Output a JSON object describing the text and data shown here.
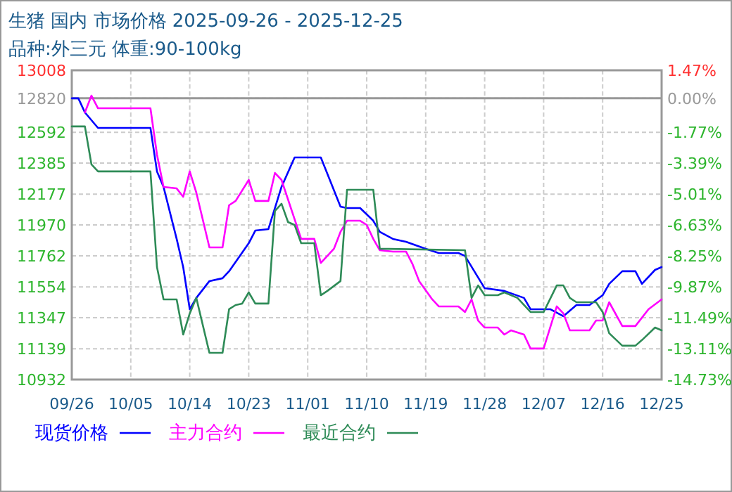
{
  "chart_data": {
    "type": "line",
    "title": "生猪 国内 市场价格 2025-09-26 - 2025-12-25",
    "subtitle": "品种:外三元 体重:90-100kg",
    "xlim": [
      "--09-26",
      "--12-25"
    ],
    "xticks": [
      {
        "value": "--09-26",
        "label": "09/26"
      },
      {
        "value": "--10-05",
        "label": "10/05"
      },
      {
        "value": "--10-14",
        "label": "10/14"
      },
      {
        "value": "--10-23",
        "label": "10/23"
      },
      {
        "value": "--11-01",
        "label": "11/01"
      },
      {
        "value": "--11-10",
        "label": "11/10"
      },
      {
        "value": "--11-19",
        "label": "11/19"
      },
      {
        "value": "--11-28",
        "label": "11/28"
      },
      {
        "value": "--12-07",
        "label": "12/07"
      },
      {
        "value": "--12-16",
        "label": "12/16"
      },
      {
        "value": "--12-25",
        "label": "12/25"
      }
    ],
    "ylim": [
      10932,
      13008
    ],
    "yticks": [
      13008,
      12820,
      12592,
      12385,
      12177,
      11970,
      11762,
      11554,
      11347,
      11139,
      10932
    ],
    "y2lim": [
      -14.73,
      1.47
    ],
    "y2ticks": [
      {
        "value": 1.47,
        "label": "1.47%"
      },
      {
        "value": 0,
        "label": "0.00%"
      },
      {
        "value": -1.77,
        "label": "-1.77%"
      },
      {
        "value": -3.39,
        "label": "-3.39%"
      },
      {
        "value": -5.01,
        "label": "-5.01%"
      },
      {
        "value": -6.63,
        "label": "-6.63%"
      },
      {
        "value": -8.25,
        "label": "-8.25%"
      },
      {
        "value": -9.87,
        "label": "-9.87%"
      },
      {
        "value": -11.49,
        "label": "-11.49%"
      },
      {
        "value": -13.11,
        "label": "-13.11%"
      },
      {
        "value": -14.73,
        "label": "-14.73%"
      }
    ],
    "ref_lines": [
      {
        "axis": "y",
        "value": 12820,
        "color": "#999999"
      }
    ],
    "grid": true,
    "legend": "bottom",
    "line_style": "solid",
    "series": [
      {
        "name": "现货价格",
        "color": "#0000ff",
        "x": [
          "--09-26",
          "--09-27",
          "--09-28",
          "--09-30",
          "--10-08",
          "--10-09",
          "--10-10",
          "--10-12",
          "--10-13",
          "--10-14",
          "--10-15",
          "--10-17",
          "--10-19",
          "--10-20",
          "--10-23",
          "--10-24",
          "--10-26",
          "--10-28",
          "--10-30",
          "--11-03",
          "--11-06",
          "--11-07",
          "--11-09",
          "--11-11",
          "--11-12",
          "--11-14",
          "--11-16",
          "--11-19",
          "--11-21",
          "--11-24",
          "--11-25",
          "--11-28",
          "--12-01",
          "--12-04",
          "--12-05",
          "--12-08",
          "--12-10",
          "--12-12",
          "--12-14",
          "--12-16",
          "--12-17",
          "--12-19",
          "--12-21",
          "--12-22",
          "--12-24",
          "--12-25"
        ],
        "values": [
          12820,
          12820,
          12725,
          12621,
          12621,
          12329,
          12225,
          11876,
          11687,
          11404,
          11480,
          11593,
          11612,
          11659,
          11847,
          11932,
          11942,
          12225,
          12423,
          12423,
          12093,
          12083,
          12083,
          11998,
          11923,
          11876,
          11857,
          11810,
          11781,
          11781,
          11762,
          11545,
          11527,
          11480,
          11404,
          11404,
          11357,
          11432,
          11432,
          11498,
          11574,
          11659,
          11659,
          11574,
          11668,
          11687
        ]
      },
      {
        "name": "主力合约",
        "color": "#ff00ff",
        "x": [
          "--09-28",
          "--09-29",
          "--09-30",
          "--10-08",
          "--10-09",
          "--10-10",
          "--10-12",
          "--10-13",
          "--10-14",
          "--10-15",
          "--10-17",
          "--10-19",
          "--10-20",
          "--10-21",
          "--10-23",
          "--10-24",
          "--10-26",
          "--10-27",
          "--10-28",
          "--10-31",
          "--11-02",
          "--11-03",
          "--11-05",
          "--11-06",
          "--11-07",
          "--11-09",
          "--11-10",
          "--11-11",
          "--11-12",
          "--11-14",
          "--11-16",
          "--11-17",
          "--11-18",
          "--11-20",
          "--11-21",
          "--11-24",
          "--11-25",
          "--11-26",
          "--11-27",
          "--11-28",
          "--11-30",
          "--12-01",
          "--12-02",
          "--12-04",
          "--12-05",
          "--12-07",
          "--12-09",
          "--12-10",
          "--12-11",
          "--12-14",
          "--12-15",
          "--12-16",
          "--12-17",
          "--12-19",
          "--12-21",
          "--12-23",
          "--12-25"
        ],
        "values": [
          12725,
          12838,
          12753,
          12753,
          12442,
          12225,
          12215,
          12159,
          12329,
          12187,
          11819,
          11819,
          12102,
          12131,
          12272,
          12131,
          12131,
          12319,
          12272,
          11876,
          11876,
          11715,
          11810,
          11923,
          11998,
          11998,
          11970,
          11876,
          11800,
          11791,
          11791,
          11706,
          11593,
          11470,
          11423,
          11423,
          11385,
          11470,
          11328,
          11281,
          11281,
          11234,
          11262,
          11234,
          11140,
          11140,
          11423,
          11376,
          11262,
          11262,
          11328,
          11328,
          11451,
          11291,
          11291,
          11404,
          11470
        ]
      },
      {
        "name": "最近合约",
        "color": "#2e8b57",
        "x": [
          "--09-26",
          "--09-28",
          "--09-29",
          "--09-30",
          "--10-08",
          "--10-09",
          "--10-10",
          "--10-12",
          "--10-13",
          "--10-14",
          "--10-15",
          "--10-17",
          "--10-19",
          "--10-20",
          "--10-21",
          "--10-22",
          "--10-23",
          "--10-24",
          "--10-26",
          "--10-27",
          "--10-28",
          "--10-29",
          "--10-30",
          "--10-31",
          "--11-02",
          "--11-03",
          "--11-04",
          "--11-06",
          "--11-07",
          "--11-11",
          "--11-12",
          "--11-25",
          "--11-26",
          "--11-27",
          "--11-28",
          "--11-30",
          "--12-01",
          "--12-03",
          "--12-05",
          "--12-07",
          "--12-09",
          "--12-10",
          "--12-11",
          "--12-12",
          "--12-15",
          "--12-16",
          "--12-17",
          "--12-19",
          "--12-21",
          "--12-22",
          "--12-24",
          "--12-25"
        ],
        "values": [
          12631,
          12631,
          12376,
          12329,
          12329,
          11687,
          11470,
          11470,
          11234,
          11376,
          11480,
          11111,
          11111,
          11404,
          11432,
          11442,
          11517,
          11442,
          11442,
          12064,
          12112,
          11989,
          11970,
          11847,
          11847,
          11498,
          11527,
          11593,
          12206,
          12206,
          11810,
          11800,
          11480,
          11564,
          11498,
          11498,
          11517,
          11480,
          11385,
          11385,
          11564,
          11564,
          11480,
          11451,
          11451,
          11385,
          11243,
          11159,
          11159,
          11197,
          11281,
          11262
        ]
      }
    ]
  }
}
